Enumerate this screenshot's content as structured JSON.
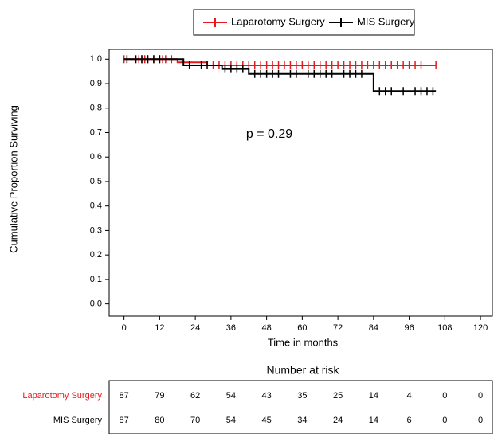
{
  "chart_data": {
    "type": "survival-step",
    "legend": "top",
    "xlabel": "Time in months",
    "ylabel": "Cumulative Proportion Surviving",
    "annotation": "p = 0.29",
    "xlim": [
      -5,
      124
    ],
    "ylim": [
      -0.05,
      1.04
    ],
    "xticks": [
      0,
      12,
      24,
      36,
      48,
      60,
      72,
      84,
      96,
      108,
      120
    ],
    "yticks": [
      {
        "value": 0,
        "label": "0.0"
      },
      0.1,
      0.2,
      0.3,
      0.4,
      0.5,
      0.6,
      0.7,
      0.8,
      0.9,
      {
        "value": 1,
        "label": "1.0"
      }
    ],
    "series": [
      {
        "name": "Laparotomy Surgery",
        "color": "#e8191c",
        "x": [
          0,
          18,
          28,
          105
        ],
        "values": [
          1,
          0.987,
          0.975,
          0.975
        ],
        "censor_x": [
          0,
          5,
          6,
          7,
          8,
          10,
          12,
          13,
          14,
          16,
          30,
          32,
          34,
          36,
          38,
          40,
          42,
          44,
          46,
          48,
          50,
          52,
          54,
          56,
          58,
          60,
          62,
          64,
          66,
          68,
          70,
          72,
          74,
          76,
          78,
          80,
          82,
          84,
          86,
          88,
          90,
          92,
          94,
          96,
          98,
          100,
          105
        ],
        "censor_values": [
          1,
          1,
          1,
          1,
          1,
          1,
          1,
          1,
          1,
          1,
          0.975,
          0.975,
          0.975,
          0.975,
          0.975,
          0.975,
          0.975,
          0.975,
          0.975,
          0.975,
          0.975,
          0.975,
          0.975,
          0.975,
          0.975,
          0.975,
          0.975,
          0.975,
          0.975,
          0.975,
          0.975,
          0.975,
          0.975,
          0.975,
          0.975,
          0.975,
          0.975,
          0.975,
          0.975,
          0.975,
          0.975,
          0.975,
          0.975,
          0.975,
          0.975,
          0.975,
          0.975
        ]
      },
      {
        "name": "MIS Surgery",
        "color": "#000000",
        "x": [
          0,
          20,
          33,
          42,
          84,
          105
        ],
        "values": [
          1,
          0.975,
          0.96,
          0.94,
          0.87,
          0.87
        ],
        "censor_x": [
          1,
          4,
          6,
          8,
          10,
          12,
          22,
          26,
          28,
          34,
          36,
          38,
          40,
          44,
          46,
          48,
          50,
          52,
          56,
          58,
          62,
          64,
          66,
          68,
          70,
          74,
          76,
          78,
          80,
          86,
          88,
          90,
          94,
          98,
          100,
          102,
          104
        ],
        "censor_values": [
          1,
          1,
          1,
          1,
          1,
          1,
          0.975,
          0.975,
          0.975,
          0.96,
          0.96,
          0.96,
          0.96,
          0.94,
          0.94,
          0.94,
          0.94,
          0.94,
          0.94,
          0.94,
          0.94,
          0.94,
          0.94,
          0.94,
          0.94,
          0.94,
          0.94,
          0.94,
          0.94,
          0.87,
          0.87,
          0.87,
          0.87,
          0.87,
          0.87,
          0.87,
          0.87
        ]
      }
    ],
    "risk_table": {
      "title": "Number at risk",
      "rows": [
        {
          "name": "Laparotomy Surgery",
          "color": "#e8191c",
          "values": [
            87,
            79,
            62,
            54,
            43,
            35,
            25,
            14,
            4,
            0,
            0
          ]
        },
        {
          "name": "MIS Surgery",
          "color": "#000000",
          "values": [
            87,
            80,
            70,
            54,
            45,
            34,
            24,
            14,
            6,
            0,
            0
          ]
        }
      ]
    }
  }
}
